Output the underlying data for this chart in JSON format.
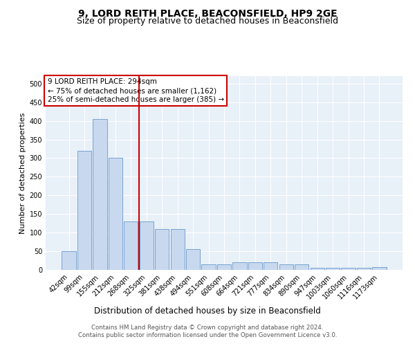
{
  "title1": "9, LORD REITH PLACE, BEACONSFIELD, HP9 2GE",
  "title2": "Size of property relative to detached houses in Beaconsfield",
  "xlabel": "Distribution of detached houses by size in Beaconsfield",
  "ylabel": "Number of detached properties",
  "footer1": "Contains HM Land Registry data © Crown copyright and database right 2024.",
  "footer2": "Contains public sector information licensed under the Open Government Licence v3.0.",
  "annotation_line1": "9 LORD REITH PLACE: 294sqm",
  "annotation_line2": "← 75% of detached houses are smaller (1,162)",
  "annotation_line3": "25% of semi-detached houses are larger (385) →",
  "bar_color": "#c8d8ee",
  "bar_edge_color": "#6699cc",
  "vline_color": "#cc0000",
  "vline_position": 4.5,
  "categories": [
    "42sqm",
    "99sqm",
    "155sqm",
    "212sqm",
    "268sqm",
    "325sqm",
    "381sqm",
    "438sqm",
    "494sqm",
    "551sqm",
    "608sqm",
    "664sqm",
    "721sqm",
    "777sqm",
    "834sqm",
    "890sqm",
    "947sqm",
    "1003sqm",
    "1060sqm",
    "1116sqm",
    "1173sqm"
  ],
  "values": [
    50,
    320,
    405,
    300,
    130,
    130,
    110,
    110,
    55,
    15,
    15,
    20,
    20,
    20,
    15,
    15,
    5,
    5,
    5,
    5,
    8
  ],
  "ylim": [
    0,
    520
  ],
  "yticks": [
    0,
    50,
    100,
    150,
    200,
    250,
    300,
    350,
    400,
    450,
    500
  ],
  "plot_background": "#e8f0f8",
  "title_fontsize": 10,
  "subtitle_fontsize": 9,
  "tick_fontsize": 7,
  "ylabel_fontsize": 8,
  "xlabel_fontsize": 8.5,
  "annotation_fontsize": 7.5,
  "footer_fontsize": 6.2
}
